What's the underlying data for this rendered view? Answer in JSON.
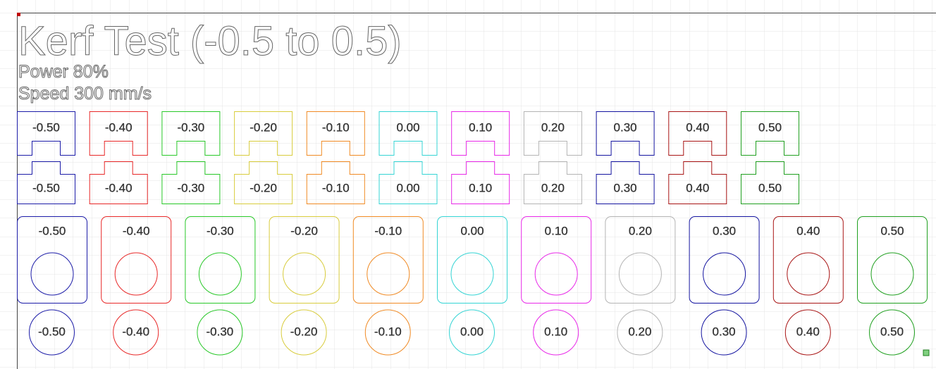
{
  "title": "Kerf Test (-0.5 to 0.5)",
  "power": "Power 80%",
  "speed": "Speed 300 mm/s",
  "columns": [
    {
      "label": "-0.50",
      "color": "#1c1ca8"
    },
    {
      "label": "-0.40",
      "color": "#e82828"
    },
    {
      "label": "-0.30",
      "color": "#28c828"
    },
    {
      "label": "-0.20",
      "color": "#d8cc3c"
    },
    {
      "label": "-0.10",
      "color": "#f08a24"
    },
    {
      "label": "0.00",
      "color": "#34d4d4"
    },
    {
      "label": "0.10",
      "color": "#e828e8"
    },
    {
      "label": "0.20",
      "color": "#b4b4b4"
    },
    {
      "label": "0.30",
      "color": "#1414a0"
    },
    {
      "label": "0.40",
      "color": "#a81414"
    },
    {
      "label": "0.50",
      "color": "#20a020"
    }
  ]
}
